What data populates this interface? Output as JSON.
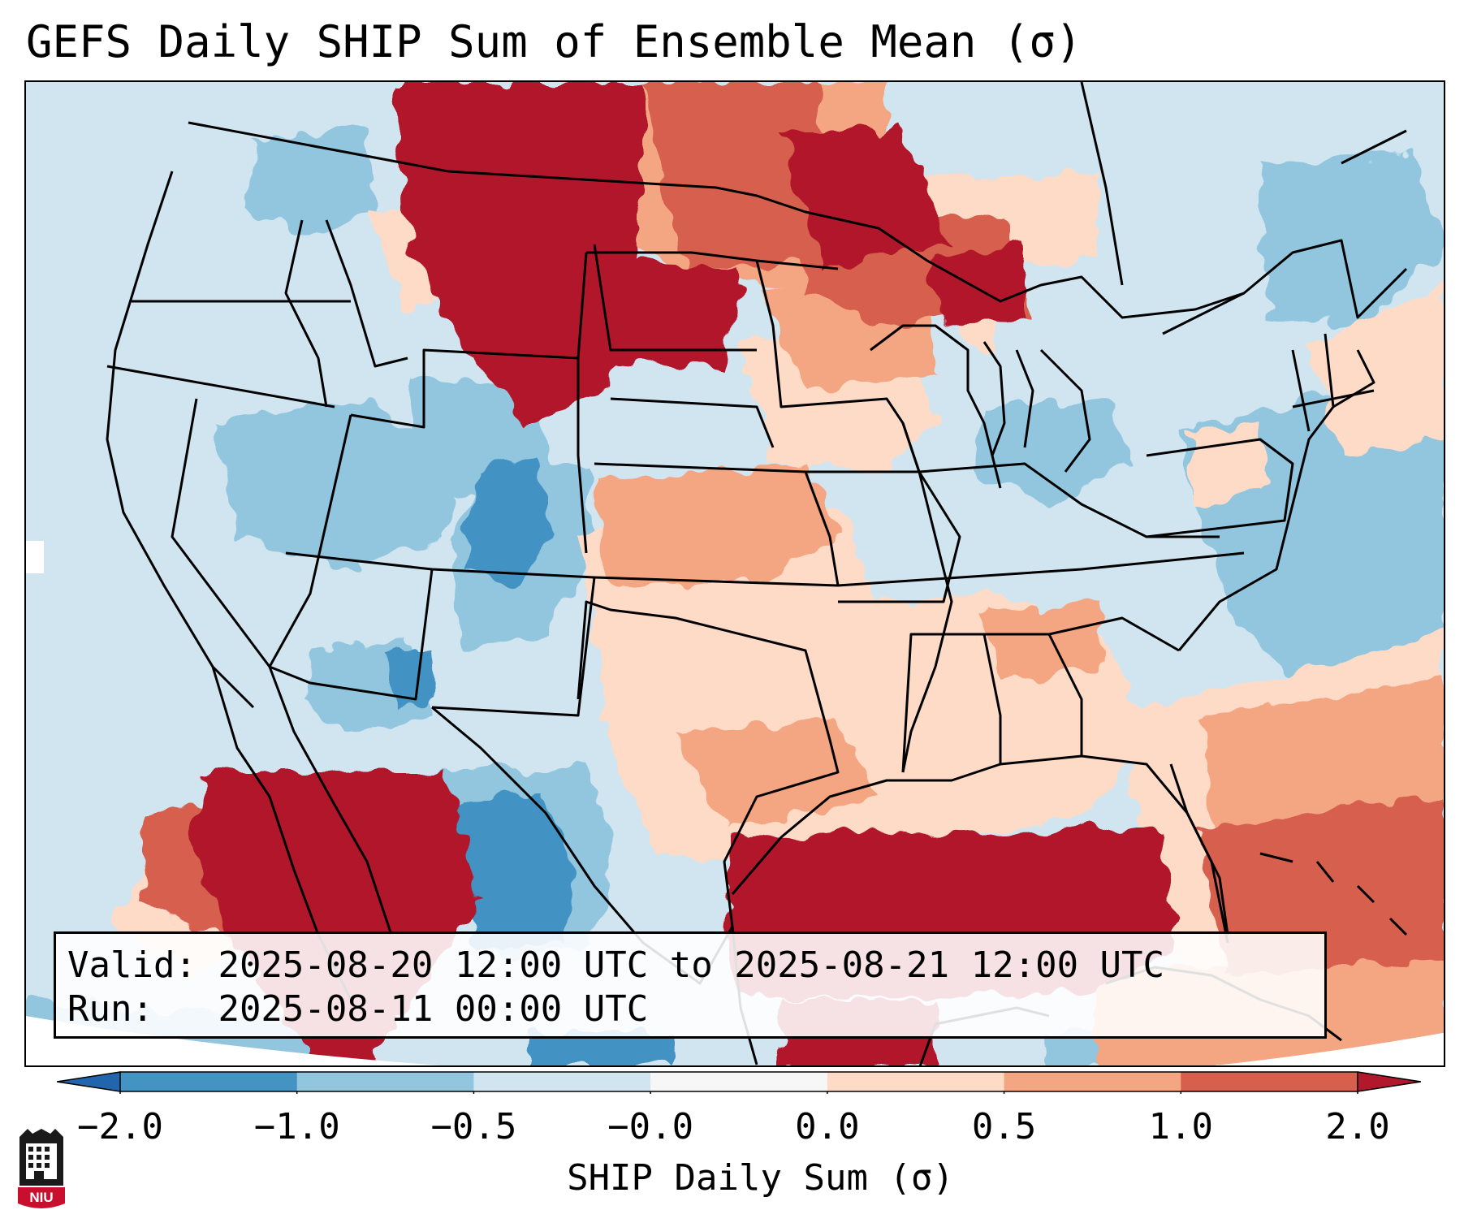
{
  "title": "GEFS Daily SHIP Sum of Ensemble Mean (σ)",
  "info": {
    "valid_label": "Valid:",
    "valid_value": "2025-08-20 12:00 UTC to 2025-08-21 12:00 UTC",
    "run_label": "Run:",
    "run_value": "2025-08-11 00:00 UTC"
  },
  "colorbar": {
    "label": "SHIP Daily Sum (σ)",
    "ticks": [
      "−2.0",
      "−1.0",
      "−0.5",
      "−0.0",
      "0.0",
      "0.5",
      "1.0",
      "2.0"
    ],
    "bins": [
      {
        "min": -2.0,
        "max": -1.0,
        "color": "#4393c3"
      },
      {
        "min": -1.0,
        "max": -0.5,
        "color": "#92c5de"
      },
      {
        "min": -0.5,
        "max": -0.0,
        "color": "#d1e5f0"
      },
      {
        "min": -0.0,
        "max": 0.0,
        "color": "#f7f7f7"
      },
      {
        "min": 0.0,
        "max": 0.5,
        "color": "#fddbc7"
      },
      {
        "min": 0.5,
        "max": 1.0,
        "color": "#f4a582"
      },
      {
        "min": 1.0,
        "max": 2.0,
        "color": "#d6604d"
      }
    ],
    "under_color": "#2166ac",
    "over_color": "#b2182b"
  },
  "logo": {
    "text": "NIU",
    "icon": "niu-logo-icon",
    "colors": {
      "dark": "#1a1a1a",
      "red": "#c8102e"
    }
  },
  "regions": [
    {
      "name": "northern-plains-high",
      "level": "over"
    },
    {
      "name": "gulf-coast-high",
      "level": "over"
    },
    {
      "name": "mexico-west-high",
      "level": "over"
    },
    {
      "name": "atlantic-offshore-high",
      "level": "1.0"
    },
    {
      "name": "four-corners-low",
      "level": "-1.0"
    },
    {
      "name": "west-texas-low",
      "level": "-1.0"
    },
    {
      "name": "western-atlantic-low",
      "level": "-0.5"
    }
  ]
}
